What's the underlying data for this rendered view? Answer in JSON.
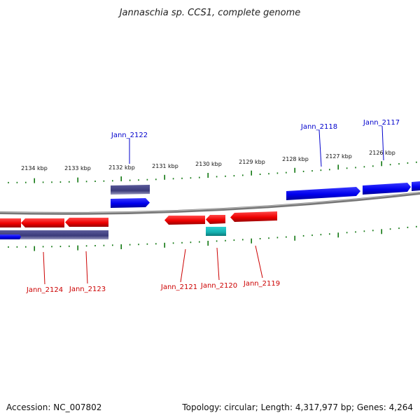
{
  "title": "Jannaschia sp. CCS1, complete genome",
  "footer": {
    "accession": "Accession: NC_007802",
    "stats": "Topology: circular; Length: 4,317,977 bp; Genes: 4,264"
  },
  "colors": {
    "forward_gene": "#0000ee",
    "reverse_gene": "#ee0000",
    "rna_gene": "#1ab8b8",
    "other_feature": "#3a3a7a",
    "tick": "#117711",
    "backbone": "#888888",
    "forward_label": "#0000cc",
    "reverse_label": "#cc0000"
  },
  "scale": {
    "unit": "kbp",
    "labels": [
      "2134 kbp",
      "2133 kbp",
      "2132 kbp",
      "2131 kbp",
      "2130 kbp",
      "2129 kbp",
      "2128 kbp",
      "2127 kbp",
      "2126 kbp"
    ]
  },
  "gene_labels": {
    "forward": [
      "Jann_2122",
      "Jann_2118",
      "Jann_2117"
    ],
    "reverse": [
      "Jann_2124",
      "Jann_2123",
      "Jann_2121",
      "Jann_2120",
      "Jann_2119"
    ]
  }
}
